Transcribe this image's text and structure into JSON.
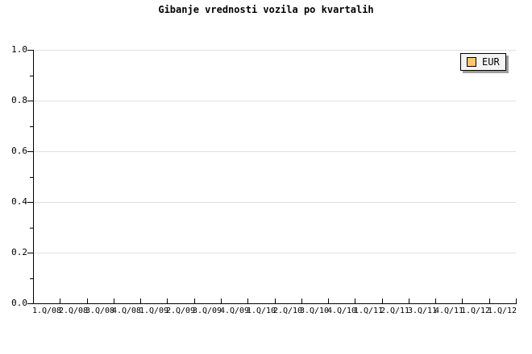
{
  "chart_data": {
    "type": "bar",
    "title": "Gibanje vrednosti vozila po kvartalih",
    "categories": [
      "1.Q/08",
      "2.Q/08",
      "3.Q/08",
      "4.Q/08",
      "1.Q/09",
      "2.Q/09",
      "3.Q/09",
      "4.Q/09",
      "1.Q/10",
      "2.Q/10",
      "3.Q/10",
      "4.Q/10",
      "1.Q/11",
      "2.Q/11",
      "3.Q/11",
      "4.Q/11",
      "1.Q/12",
      "1.Q/12"
    ],
    "series": [
      {
        "name": "EUR",
        "color": "#ffc966",
        "values": []
      }
    ],
    "plot_empty": true,
    "ylim": [
      0.0,
      1.0
    ],
    "ytick_labels": [
      "1.0",
      "0.8",
      "0.6",
      "0.4",
      "0.2",
      "0.0"
    ],
    "ytick_values": [
      1.0,
      0.8,
      0.6,
      0.4,
      0.2,
      0.0
    ],
    "minor_ytick_interval": 0.1,
    "grid": "horizontal major gridlines only",
    "legend_position": "top-right"
  },
  "colors": {
    "background": "#ffffff",
    "axis": "#000000",
    "gridline": "#e0e0e0",
    "text": "#000000",
    "legend_bg": "#f4f4f4",
    "legend_border": "#000000",
    "legend_shadow": "#9e9e9e",
    "series_eur": "#ffc966"
  }
}
